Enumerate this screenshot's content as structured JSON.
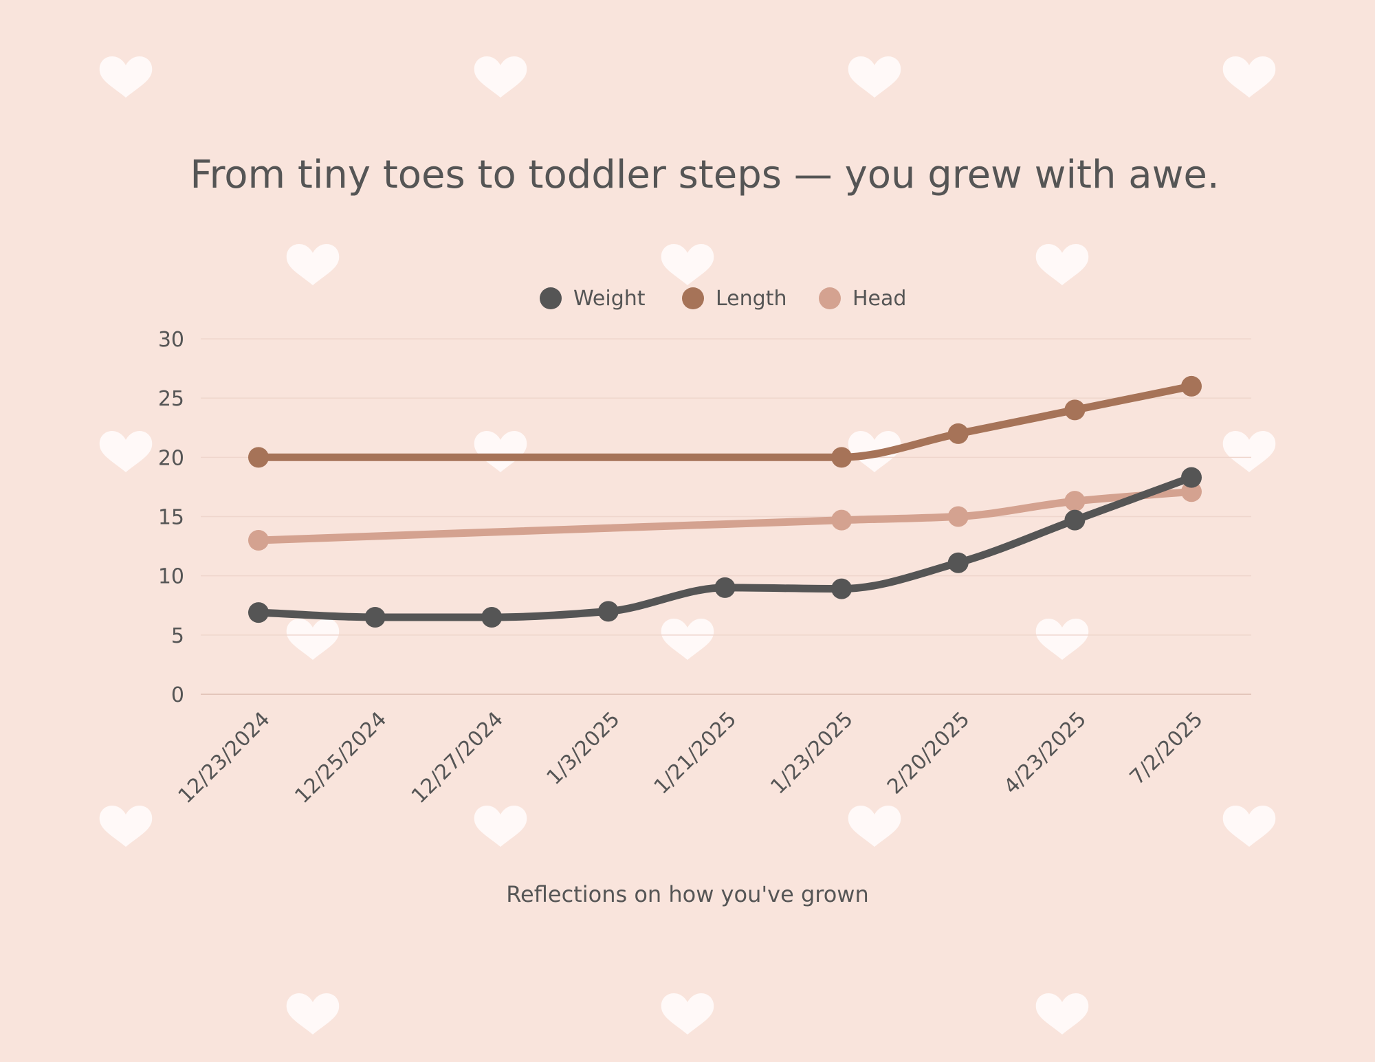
{
  "page": {
    "background": "#f9e4dc",
    "heart_color": "#fff9f8",
    "gridline_color": "#efd6cd",
    "axis_color": "#e3c6bb",
    "text_color": "#555555"
  },
  "chart_data": {
    "type": "line",
    "title": "From tiny toes to toddler steps — you grew with awe.",
    "xlabel": "Reflections on how you've grown",
    "ylabel": "",
    "categories": [
      "12/23/2024",
      "12/25/2024",
      "12/27/2024",
      "1/3/2025",
      "1/21/2025",
      "1/23/2025",
      "2/20/2025",
      "4/23/2025",
      "7/2/2025"
    ],
    "ylim": [
      0,
      30
    ],
    "yticks": [
      0,
      5,
      10,
      15,
      20,
      25,
      30
    ],
    "grid": true,
    "legend_position": "top-center",
    "series": [
      {
        "name": "Weight",
        "color": "#555555",
        "values": [
          6.9,
          6.5,
          6.5,
          7.0,
          9.0,
          8.9,
          11.1,
          14.7,
          18.3
        ]
      },
      {
        "name": "Length",
        "color": "#a67358",
        "values": [
          20.0,
          null,
          null,
          null,
          null,
          20.0,
          22.0,
          24.0,
          26.0
        ]
      },
      {
        "name": "Head",
        "color": "#d4a290",
        "values": [
          13.0,
          null,
          null,
          null,
          null,
          14.7,
          15.0,
          16.3,
          17.1
        ]
      }
    ]
  }
}
